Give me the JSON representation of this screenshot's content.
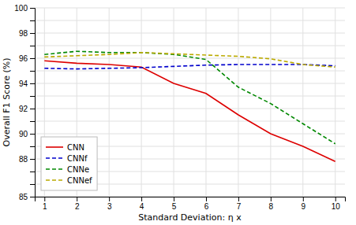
{
  "chart_data": {
    "type": "line",
    "xlabel": "Standard Deviation: η x",
    "ylabel": "Overall F1 Score (%)",
    "x": [
      1,
      2,
      3,
      4,
      5,
      6,
      7,
      8,
      9,
      10
    ],
    "series": [
      {
        "name": "CNN",
        "color": "#dd0000",
        "line_style": "solid",
        "values": [
          95.8,
          95.6,
          95.5,
          95.3,
          94.0,
          93.2,
          91.5,
          90.0,
          89.0,
          87.8
        ]
      },
      {
        "name": "CNNf",
        "color": "#0000cc",
        "line_style": "dashed",
        "values": [
          95.2,
          95.15,
          95.2,
          95.25,
          95.35,
          95.45,
          95.5,
          95.5,
          95.5,
          95.4
        ]
      },
      {
        "name": "CNNe",
        "color": "#008800",
        "line_style": "dashed",
        "values": [
          96.3,
          96.55,
          96.45,
          96.45,
          96.3,
          95.9,
          93.7,
          92.4,
          90.8,
          89.2
        ]
      },
      {
        "name": "CNNef",
        "color": "#bbaa00",
        "line_style": "dashed",
        "values": [
          96.1,
          96.2,
          96.3,
          96.45,
          96.35,
          96.25,
          96.15,
          95.95,
          95.5,
          95.3
        ]
      }
    ],
    "xlim": [
      0.7,
      10.3
    ],
    "xticks": [
      1,
      2,
      3,
      4,
      5,
      6,
      7,
      8,
      9,
      10
    ],
    "ylim": [
      85,
      100
    ],
    "yticks": [
      85,
      {
        "value": 86,
        "label": null
      },
      {
        "value": 87,
        "label": null
      },
      88,
      {
        "value": 89,
        "label": null
      },
      90,
      {
        "value": 91,
        "label": null
      },
      92,
      {
        "value": 93,
        "label": null
      },
      94,
      {
        "value": 95,
        "label": null
      },
      96,
      {
        "value": 97,
        "label": null
      },
      98,
      {
        "value": 99,
        "label": null
      },
      100
    ],
    "grid": true,
    "legend": "lower left"
  }
}
